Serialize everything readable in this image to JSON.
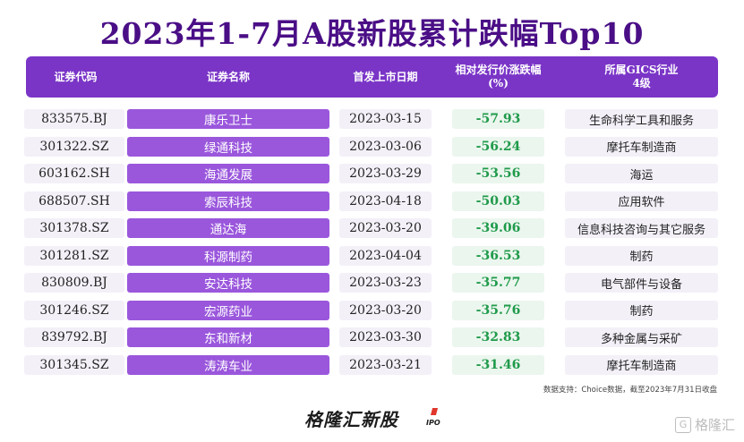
{
  "title": "2023年1-7月A股新股累计跌幅Top10",
  "columns": [
    "证券代码",
    "证券名称",
    "首发上市日期",
    "相对发行价涨跌幅\n(%)",
    "所属GICS行业\n4级"
  ],
  "rows": [
    {
      "code": "833575.BJ",
      "name": "康乐卫士",
      "date": "2023-03-15",
      "change": "-57.93",
      "industry": "生命科学工具和服务"
    },
    {
      "code": "301322.SZ",
      "name": "绿通科技",
      "date": "2023-03-06",
      "change": "-56.24",
      "industry": "摩托车制造商"
    },
    {
      "code": "603162.SH",
      "name": "海通发展",
      "date": "2023-03-29",
      "change": "-53.56",
      "industry": "海运"
    },
    {
      "code": "688507.SH",
      "name": "索辰科技",
      "date": "2023-04-18",
      "change": "-50.03",
      "industry": "应用软件"
    },
    {
      "code": "301378.SZ",
      "name": "通达海",
      "date": "2023-03-20",
      "change": "-39.06",
      "industry": "信息科技咨询与其它服务"
    },
    {
      "code": "301281.SZ",
      "name": "科源制药",
      "date": "2023-04-04",
      "change": "-36.53",
      "industry": "制药"
    },
    {
      "code": "830809.BJ",
      "name": "安达科技",
      "date": "2023-03-23",
      "change": "-35.77",
      "industry": "电气部件与设备"
    },
    {
      "code": "301246.SZ",
      "name": "宏源药业",
      "date": "2023-03-20",
      "change": "-35.76",
      "industry": "制药"
    },
    {
      "code": "839792.BJ",
      "name": "东和新材",
      "date": "2023-03-30",
      "change": "-32.83",
      "industry": "多种金属与采矿"
    },
    {
      "code": "301345.SZ",
      "name": "涛涛车业",
      "date": "2023-03-21",
      "change": "-31.46",
      "industry": "摩托车制造商"
    }
  ],
  "source_note": "数据支持：Choice数据，截至2023年7月31日收盘",
  "brand": "格隆汇新股",
  "brand_tag": "IPO",
  "watermark": "格隆汇",
  "watermark_icon": "G",
  "colors": {
    "title": "#4a0e86",
    "header_bg": "#7a35c7",
    "name_bg": "#9a57dc",
    "negative": "#1f9a4a"
  }
}
